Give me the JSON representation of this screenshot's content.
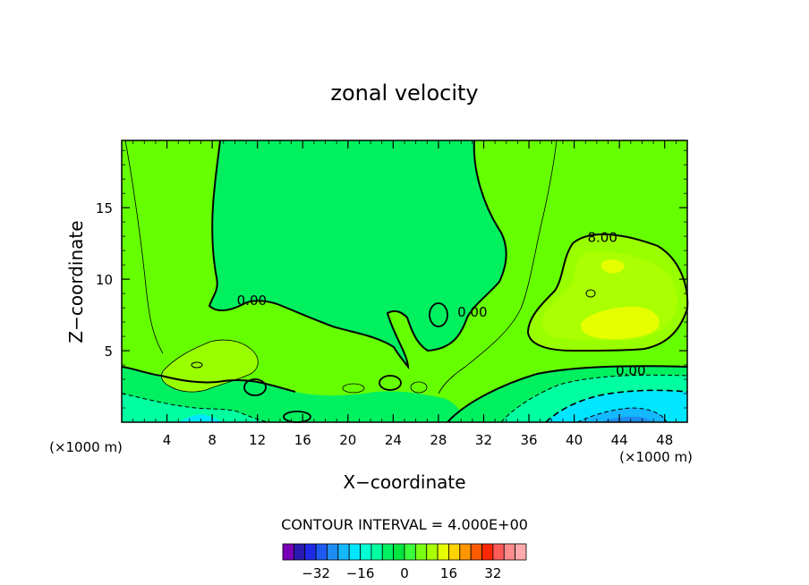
{
  "chart_data": {
    "type": "contour",
    "title": "zonal velocity",
    "xlabel": "X−coordinate",
    "ylabel": "Z−coordinate",
    "x_unit": "(×1000 m)",
    "xlim": [
      0,
      50
    ],
    "ylim": [
      0,
      19.7
    ],
    "x_ticks": [
      4,
      8,
      12,
      16,
      20,
      24,
      28,
      32,
      36,
      40,
      44,
      48
    ],
    "y_ticks": [
      5,
      10,
      15
    ],
    "contour_labels": [
      {
        "text": "0.00",
        "x": 11.5,
        "z": 8.5
      },
      {
        "text": "0.00",
        "x": 31.0,
        "z": 7.7
      },
      {
        "text": "8.00",
        "x": 42.5,
        "z": 12.9
      },
      {
        "text": "0.00",
        "x": 45.0,
        "z": 3.6
      }
    ],
    "contour_interval_text": "CONTOUR INTERVAL = 4.000E+00",
    "colorbar": {
      "levels": [
        -36,
        -32,
        -28,
        -24,
        -20,
        -16,
        -12,
        -8,
        -4,
        0,
        4,
        8,
        12,
        16,
        20,
        24,
        28,
        32,
        36
      ],
      "colors": [
        "#7a00b8",
        "#2a1ab0",
        "#1e2ae6",
        "#1e5af0",
        "#1e8cf0",
        "#14b8ff",
        "#00e6ff",
        "#00ffd2",
        "#00ffa0",
        "#00f060",
        "#00e640",
        "#3cff3c",
        "#78ff14",
        "#aaff00",
        "#e6ff00",
        "#ffd200",
        "#ff9600",
        "#ff5a00",
        "#ff2800",
        "#ff5a5a",
        "#ff8c8c",
        "#ffaaaa"
      ],
      "tick_labels": [
        "−32",
        "−16",
        "0",
        "16",
        "32"
      ],
      "tick_values": [
        -32,
        -16,
        0,
        16,
        32
      ]
    },
    "field_colors": {
      "neg8": "#00e6ff",
      "neg4": "#00ffa0",
      "zero": "#00f060",
      "pos4": "#66ff00",
      "pos8": "#99ff00",
      "pos12": "#aaff00",
      "pos16": "#e6ff00"
    }
  }
}
